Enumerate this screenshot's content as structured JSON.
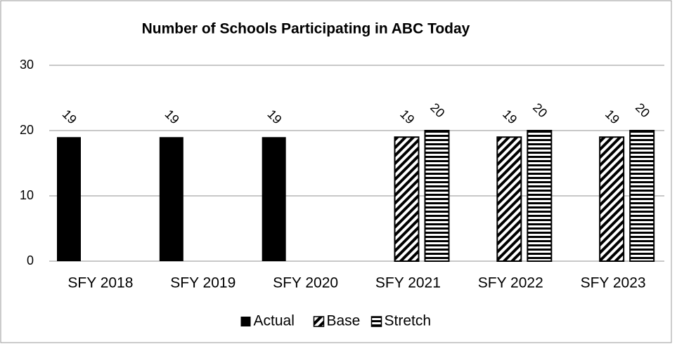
{
  "chart_data": {
    "type": "bar",
    "title": "Number of Schools Participating in ABC Today",
    "categories": [
      "SFY 2018",
      "SFY 2019",
      "SFY 2020",
      "SFY 2021",
      "SFY 2022",
      "SFY 2023"
    ],
    "series": [
      {
        "name": "Actual",
        "color": "#000000",
        "pattern": "solid",
        "values": [
          19,
          19,
          19,
          null,
          null,
          null
        ]
      },
      {
        "name": "Base",
        "color": "#000000",
        "pattern": "diagonal",
        "values": [
          null,
          null,
          null,
          19,
          19,
          19
        ]
      },
      {
        "name": "Stretch",
        "color": "#000000",
        "pattern": "horizontal",
        "values": [
          null,
          null,
          null,
          20,
          20,
          20
        ]
      }
    ],
    "ylim": [
      0,
      30
    ],
    "yticks": [
      0,
      10,
      20,
      30
    ],
    "grid": true,
    "legend": "bottom"
  }
}
